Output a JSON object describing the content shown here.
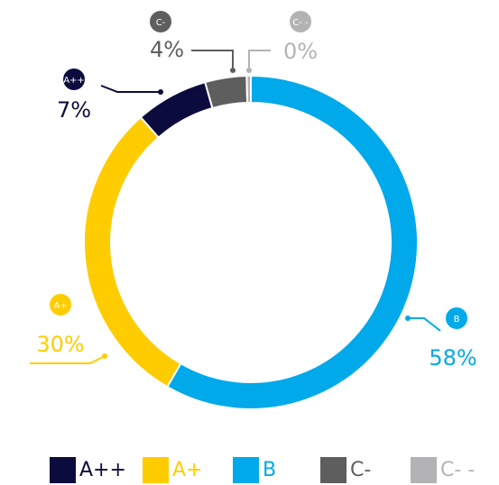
{
  "chart_data": {
    "type": "donut",
    "categories": [
      "A++",
      "A+",
      "B",
      "C-",
      "C- -"
    ],
    "values": [
      7,
      30,
      58,
      4,
      0.4
    ],
    "value_labels": [
      "7%",
      "30%",
      "58%",
      "4%",
      "0%"
    ],
    "colors": [
      "#0b0b3d",
      "#ffcc00",
      "#00a9ea",
      "#5e5e5e",
      "#b3b3b6"
    ],
    "legend": "bottom"
  }
}
